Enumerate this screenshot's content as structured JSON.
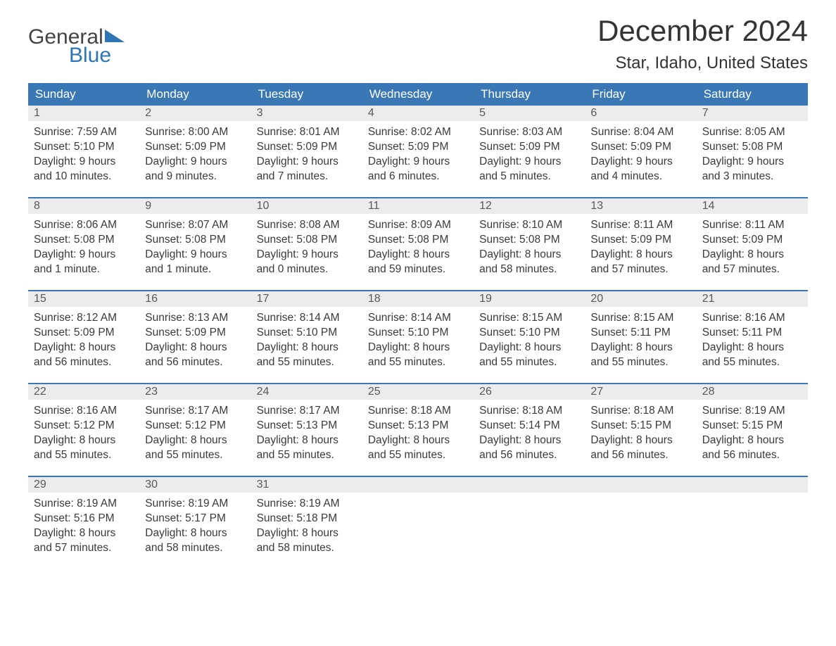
{
  "logo": {
    "text_general": "General",
    "text_blue": "Blue",
    "triangle_color": "#2d75b5"
  },
  "title": "December 2024",
  "location": "Star, Idaho, United States",
  "colors": {
    "header_bg": "#3a78b5",
    "header_text": "#ffffff",
    "day_number_bg": "#ececec",
    "day_number_text": "#595959",
    "body_text": "#3a3a3a",
    "border": "#3a78b5"
  },
  "day_headers": [
    "Sunday",
    "Monday",
    "Tuesday",
    "Wednesday",
    "Thursday",
    "Friday",
    "Saturday"
  ],
  "weeks": [
    [
      {
        "num": "1",
        "sunrise": "Sunrise: 7:59 AM",
        "sunset": "Sunset: 5:10 PM",
        "daylight1": "Daylight: 9 hours",
        "daylight2": "and 10 minutes."
      },
      {
        "num": "2",
        "sunrise": "Sunrise: 8:00 AM",
        "sunset": "Sunset: 5:09 PM",
        "daylight1": "Daylight: 9 hours",
        "daylight2": "and 9 minutes."
      },
      {
        "num": "3",
        "sunrise": "Sunrise: 8:01 AM",
        "sunset": "Sunset: 5:09 PM",
        "daylight1": "Daylight: 9 hours",
        "daylight2": "and 7 minutes."
      },
      {
        "num": "4",
        "sunrise": "Sunrise: 8:02 AM",
        "sunset": "Sunset: 5:09 PM",
        "daylight1": "Daylight: 9 hours",
        "daylight2": "and 6 minutes."
      },
      {
        "num": "5",
        "sunrise": "Sunrise: 8:03 AM",
        "sunset": "Sunset: 5:09 PM",
        "daylight1": "Daylight: 9 hours",
        "daylight2": "and 5 minutes."
      },
      {
        "num": "6",
        "sunrise": "Sunrise: 8:04 AM",
        "sunset": "Sunset: 5:09 PM",
        "daylight1": "Daylight: 9 hours",
        "daylight2": "and 4 minutes."
      },
      {
        "num": "7",
        "sunrise": "Sunrise: 8:05 AM",
        "sunset": "Sunset: 5:08 PM",
        "daylight1": "Daylight: 9 hours",
        "daylight2": "and 3 minutes."
      }
    ],
    [
      {
        "num": "8",
        "sunrise": "Sunrise: 8:06 AM",
        "sunset": "Sunset: 5:08 PM",
        "daylight1": "Daylight: 9 hours",
        "daylight2": "and 1 minute."
      },
      {
        "num": "9",
        "sunrise": "Sunrise: 8:07 AM",
        "sunset": "Sunset: 5:08 PM",
        "daylight1": "Daylight: 9 hours",
        "daylight2": "and 1 minute."
      },
      {
        "num": "10",
        "sunrise": "Sunrise: 8:08 AM",
        "sunset": "Sunset: 5:08 PM",
        "daylight1": "Daylight: 9 hours",
        "daylight2": "and 0 minutes."
      },
      {
        "num": "11",
        "sunrise": "Sunrise: 8:09 AM",
        "sunset": "Sunset: 5:08 PM",
        "daylight1": "Daylight: 8 hours",
        "daylight2": "and 59 minutes."
      },
      {
        "num": "12",
        "sunrise": "Sunrise: 8:10 AM",
        "sunset": "Sunset: 5:08 PM",
        "daylight1": "Daylight: 8 hours",
        "daylight2": "and 58 minutes."
      },
      {
        "num": "13",
        "sunrise": "Sunrise: 8:11 AM",
        "sunset": "Sunset: 5:09 PM",
        "daylight1": "Daylight: 8 hours",
        "daylight2": "and 57 minutes."
      },
      {
        "num": "14",
        "sunrise": "Sunrise: 8:11 AM",
        "sunset": "Sunset: 5:09 PM",
        "daylight1": "Daylight: 8 hours",
        "daylight2": "and 57 minutes."
      }
    ],
    [
      {
        "num": "15",
        "sunrise": "Sunrise: 8:12 AM",
        "sunset": "Sunset: 5:09 PM",
        "daylight1": "Daylight: 8 hours",
        "daylight2": "and 56 minutes."
      },
      {
        "num": "16",
        "sunrise": "Sunrise: 8:13 AM",
        "sunset": "Sunset: 5:09 PM",
        "daylight1": "Daylight: 8 hours",
        "daylight2": "and 56 minutes."
      },
      {
        "num": "17",
        "sunrise": "Sunrise: 8:14 AM",
        "sunset": "Sunset: 5:10 PM",
        "daylight1": "Daylight: 8 hours",
        "daylight2": "and 55 minutes."
      },
      {
        "num": "18",
        "sunrise": "Sunrise: 8:14 AM",
        "sunset": "Sunset: 5:10 PM",
        "daylight1": "Daylight: 8 hours",
        "daylight2": "and 55 minutes."
      },
      {
        "num": "19",
        "sunrise": "Sunrise: 8:15 AM",
        "sunset": "Sunset: 5:10 PM",
        "daylight1": "Daylight: 8 hours",
        "daylight2": "and 55 minutes."
      },
      {
        "num": "20",
        "sunrise": "Sunrise: 8:15 AM",
        "sunset": "Sunset: 5:11 PM",
        "daylight1": "Daylight: 8 hours",
        "daylight2": "and 55 minutes."
      },
      {
        "num": "21",
        "sunrise": "Sunrise: 8:16 AM",
        "sunset": "Sunset: 5:11 PM",
        "daylight1": "Daylight: 8 hours",
        "daylight2": "and 55 minutes."
      }
    ],
    [
      {
        "num": "22",
        "sunrise": "Sunrise: 8:16 AM",
        "sunset": "Sunset: 5:12 PM",
        "daylight1": "Daylight: 8 hours",
        "daylight2": "and 55 minutes."
      },
      {
        "num": "23",
        "sunrise": "Sunrise: 8:17 AM",
        "sunset": "Sunset: 5:12 PM",
        "daylight1": "Daylight: 8 hours",
        "daylight2": "and 55 minutes."
      },
      {
        "num": "24",
        "sunrise": "Sunrise: 8:17 AM",
        "sunset": "Sunset: 5:13 PM",
        "daylight1": "Daylight: 8 hours",
        "daylight2": "and 55 minutes."
      },
      {
        "num": "25",
        "sunrise": "Sunrise: 8:18 AM",
        "sunset": "Sunset: 5:13 PM",
        "daylight1": "Daylight: 8 hours",
        "daylight2": "and 55 minutes."
      },
      {
        "num": "26",
        "sunrise": "Sunrise: 8:18 AM",
        "sunset": "Sunset: 5:14 PM",
        "daylight1": "Daylight: 8 hours",
        "daylight2": "and 56 minutes."
      },
      {
        "num": "27",
        "sunrise": "Sunrise: 8:18 AM",
        "sunset": "Sunset: 5:15 PM",
        "daylight1": "Daylight: 8 hours",
        "daylight2": "and 56 minutes."
      },
      {
        "num": "28",
        "sunrise": "Sunrise: 8:19 AM",
        "sunset": "Sunset: 5:15 PM",
        "daylight1": "Daylight: 8 hours",
        "daylight2": "and 56 minutes."
      }
    ],
    [
      {
        "num": "29",
        "sunrise": "Sunrise: 8:19 AM",
        "sunset": "Sunset: 5:16 PM",
        "daylight1": "Daylight: 8 hours",
        "daylight2": "and 57 minutes."
      },
      {
        "num": "30",
        "sunrise": "Sunrise: 8:19 AM",
        "sunset": "Sunset: 5:17 PM",
        "daylight1": "Daylight: 8 hours",
        "daylight2": "and 58 minutes."
      },
      {
        "num": "31",
        "sunrise": "Sunrise: 8:19 AM",
        "sunset": "Sunset: 5:18 PM",
        "daylight1": "Daylight: 8 hours",
        "daylight2": "and 58 minutes."
      },
      {
        "empty": true
      },
      {
        "empty": true
      },
      {
        "empty": true
      },
      {
        "empty": true
      }
    ]
  ]
}
